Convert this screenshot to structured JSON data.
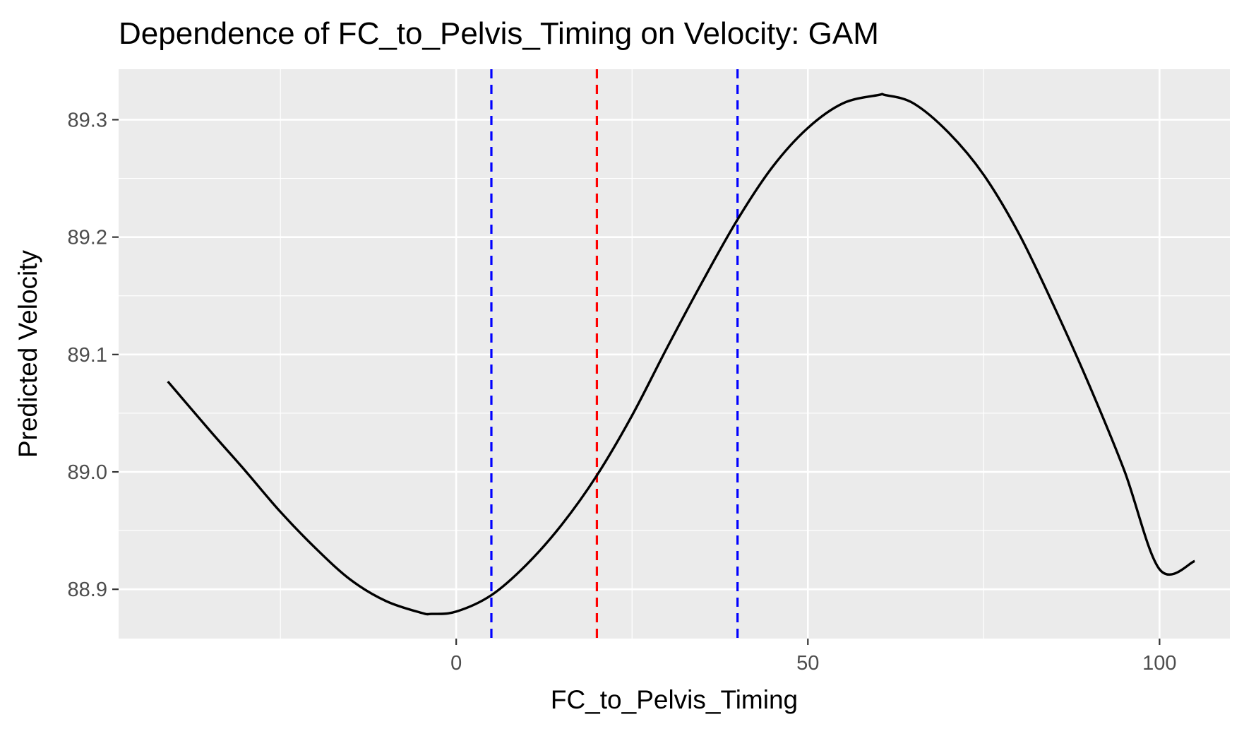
{
  "chart_data": {
    "type": "line",
    "title": "Dependence of FC_to_Pelvis_Timing on Velocity: GAM",
    "xlabel": "FC_to_Pelvis_Timing",
    "ylabel": "Predicted Velocity",
    "xlim": [
      -48,
      110
    ],
    "ylim": [
      88.858,
      89.343
    ],
    "x_ticks": [
      0,
      50,
      100
    ],
    "x_tick_labels": [
      "0",
      "50",
      "100"
    ],
    "x_minor_ticks": [
      -25,
      25,
      75
    ],
    "y_ticks": [
      88.9,
      89.0,
      89.1,
      89.2,
      89.3
    ],
    "y_tick_labels": [
      "88.9",
      "89.0",
      "89.1",
      "89.2",
      "89.3"
    ],
    "y_minor_ticks": [
      88.95,
      89.05,
      89.15,
      89.25
    ],
    "grid": true,
    "panel_background": "#ebebeb",
    "grid_color": "#ffffff",
    "series": [
      {
        "color": "#000000",
        "x": [
          -41,
          -35,
          -30,
          -25,
          -20,
          -15,
          -10,
          -5,
          -3.5,
          0,
          5,
          10,
          15,
          20,
          25,
          30,
          35,
          40,
          45,
          50,
          55,
          60,
          61,
          65,
          70,
          75,
          80,
          85,
          90,
          95,
          100,
          105
        ],
        "y": [
          89.077,
          89.035,
          89.001,
          88.966,
          88.935,
          88.908,
          88.89,
          88.88,
          88.879,
          88.881,
          88.895,
          88.921,
          88.955,
          88.997,
          89.048,
          89.106,
          89.162,
          89.215,
          89.26,
          89.293,
          89.314,
          89.321,
          89.321,
          89.314,
          89.289,
          89.253,
          89.203,
          89.141,
          89.074,
          89.001,
          88.917,
          88.924
        ]
      }
    ],
    "vlines": [
      {
        "x": 5,
        "color": "#0000ff",
        "linetype": "dashed"
      },
      {
        "x": 20,
        "color": "#ff0000",
        "linetype": "dashed"
      },
      {
        "x": 40,
        "color": "#0000ff",
        "linetype": "dashed"
      }
    ]
  }
}
